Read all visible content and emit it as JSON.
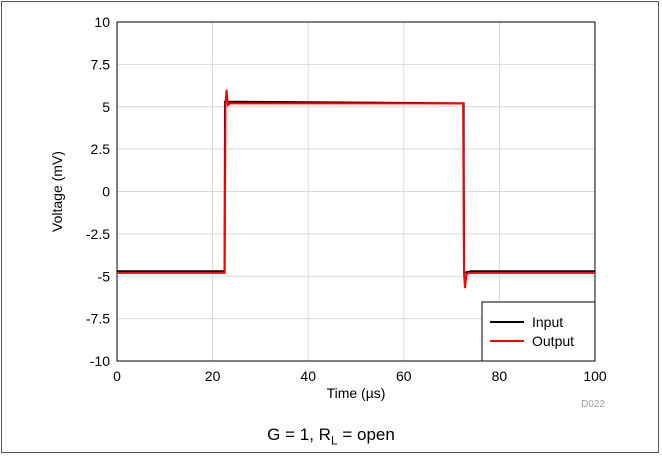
{
  "chart_data": {
    "type": "line",
    "xlabel": "Time (µs)",
    "ylabel": "Voltage (mV)",
    "xlim": [
      0,
      100
    ],
    "ylim": [
      -10,
      10
    ],
    "x_ticks": [
      0,
      20,
      40,
      60,
      80,
      100
    ],
    "y_ticks": [
      -10,
      -7.5,
      -5,
      -2.5,
      0,
      2.5,
      5,
      7.5,
      10
    ],
    "y_tick_labels": [
      "-10",
      "-7.5",
      "-5",
      "-2.5",
      "0",
      "2.5",
      "5",
      "7.5",
      "10"
    ],
    "grid": true,
    "legend_position": "bottom-right",
    "series": [
      {
        "name": "Input",
        "color": "#000000",
        "x": [
          0,
          22.5,
          22.6,
          23.5,
          72.5,
          72.6,
          74,
          100
        ],
        "y": [
          -4.7,
          -4.7,
          5.3,
          5.3,
          5.2,
          -4.8,
          -4.7,
          -4.7
        ]
      },
      {
        "name": "Output",
        "color": "#ff0000",
        "x": [
          0,
          22.5,
          22.7,
          22.9,
          23.2,
          23.6,
          72.4,
          72.6,
          72.8,
          73.1,
          73.6,
          100
        ],
        "y": [
          -4.8,
          -4.8,
          5.2,
          6.0,
          5.1,
          5.2,
          5.2,
          -4.8,
          -5.7,
          -4.9,
          -4.8,
          -4.8
        ]
      }
    ],
    "figure_id": "D022"
  },
  "caption": {
    "main": "G = 1, R",
    "sub": "L",
    "tail": " = open"
  }
}
